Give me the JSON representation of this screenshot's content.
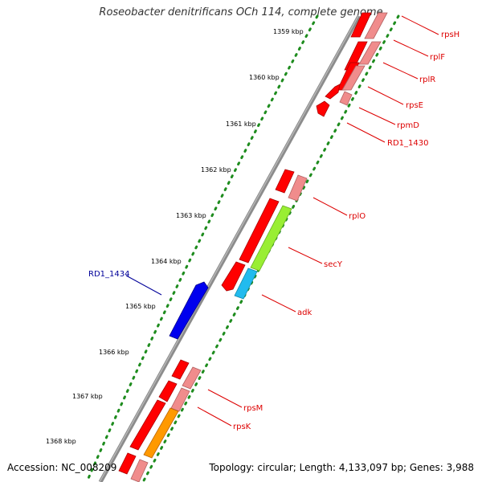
{
  "title": "Roseobacter denitrificans OCh 114, complete genome",
  "footer": {
    "accession": "Accession: NC_008209",
    "summary": "Topology: circular; Length: 4,133,097 bp; Genes: 3,988"
  },
  "axis": {
    "ticks": [
      "1359 kbp",
      "1360 kbp",
      "1361 kbp",
      "1362 kbp",
      "1363 kbp",
      "1364 kbp",
      "1365 kbp",
      "1366 kbp",
      "1367 kbp",
      "1368 kbp"
    ]
  },
  "colors": {
    "backbone": "#888888",
    "forward_track_dots": "#1e8c1e",
    "red": "#ff0000",
    "pink": "#f08c8c",
    "green": "#99ee33",
    "cyan": "#22bbee",
    "blue": "#0000ee",
    "orange": "#ff9900",
    "label_red": "#dd0000",
    "label_blue": "#000099"
  },
  "gene_labels": [
    {
      "name": "rpsH",
      "color": "red"
    },
    {
      "name": "rplF",
      "color": "red"
    },
    {
      "name": "rplR",
      "color": "red"
    },
    {
      "name": "rpsE",
      "color": "red"
    },
    {
      "name": "rpmD",
      "color": "red"
    },
    {
      "name": "RD1_1430",
      "color": "red"
    },
    {
      "name": "rplO",
      "color": "red"
    },
    {
      "name": "secY",
      "color": "red"
    },
    {
      "name": "adk",
      "color": "red"
    },
    {
      "name": "RD1_1434",
      "color": "blue"
    },
    {
      "name": "rpsM",
      "color": "red"
    },
    {
      "name": "rpsK",
      "color": "red"
    }
  ]
}
